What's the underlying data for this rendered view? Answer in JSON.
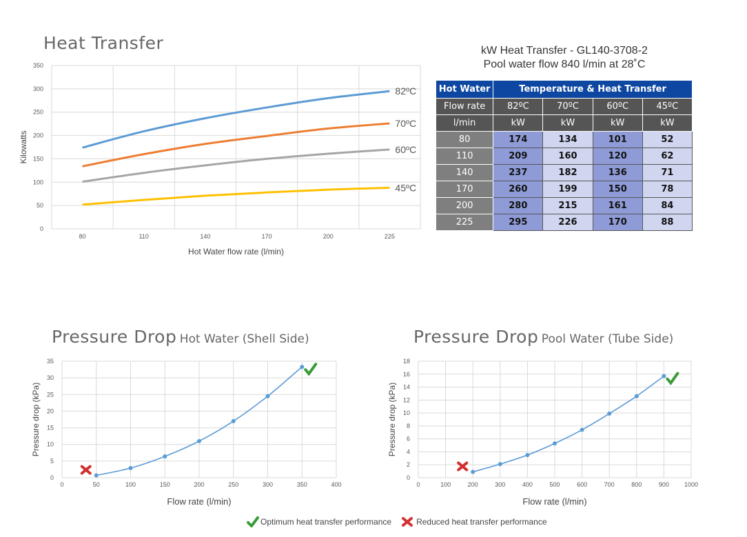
{
  "heat_transfer": {
    "title": "Heat Transfer",
    "chart_data": {
      "type": "line",
      "title": "Heat Transfer",
      "xlabel": "Hot Water flow rate (l/min)",
      "ylabel": "Kilowatts",
      "x": [
        80,
        110,
        140,
        170,
        200,
        225
      ],
      "xticks": [
        "80",
        "110",
        "140",
        "170",
        "200",
        "225"
      ],
      "ylim": [
        0,
        350
      ],
      "yticks": [
        0,
        50,
        100,
        150,
        200,
        250,
        300,
        350
      ],
      "grid": true,
      "series": [
        {
          "name": "82ºC",
          "color": "#5b9bd5",
          "values": [
            174,
            209,
            237,
            260,
            280,
            295
          ]
        },
        {
          "name": "70ºC",
          "color": "#ed7d31",
          "values": [
            134,
            160,
            182,
            199,
            215,
            226
          ]
        },
        {
          "name": "60ºC",
          "color": "#a5a5a5",
          "values": [
            101,
            120,
            136,
            150,
            161,
            170
          ]
        },
        {
          "name": "45ºC",
          "color": "#ffc000",
          "values": [
            52,
            62,
            71,
            78,
            84,
            88
          ]
        }
      ]
    }
  },
  "table": {
    "title_line1": "kW Heat Transfer - GL140-3708-2",
    "title_line2": "Pool water flow 840 l/min at 28˚C",
    "header_hot_water": "Hot Water",
    "header_temp": "Temperature & Heat Transfer",
    "header_flow_rate": "Flow rate",
    "header_lmin": "l/min",
    "temps": [
      "82ºC",
      "70ºC",
      "60ºC",
      "45ºC"
    ],
    "unit": "kW",
    "rows": [
      {
        "flow": "80",
        "vals": [
          "174",
          "134",
          "101",
          "52"
        ]
      },
      {
        "flow": "110",
        "vals": [
          "209",
          "160",
          "120",
          "62"
        ]
      },
      {
        "flow": "140",
        "vals": [
          "237",
          "182",
          "136",
          "71"
        ]
      },
      {
        "flow": "170",
        "vals": [
          "260",
          "199",
          "150",
          "78"
        ]
      },
      {
        "flow": "200",
        "vals": [
          "280",
          "215",
          "161",
          "84"
        ]
      },
      {
        "flow": "225",
        "vals": [
          "295",
          "226",
          "170",
          "88"
        ]
      }
    ]
  },
  "pd_hot": {
    "title_main": "Pressure Drop",
    "title_sub": "Hot Water (Shell Side)",
    "chart_data": {
      "type": "scatter",
      "xlabel": "Flow rate (l/min)",
      "ylabel": "Pressure drop (kPa)",
      "x": [
        50,
        100,
        150,
        200,
        250,
        300,
        350
      ],
      "y": [
        0.7,
        2.9,
        6.4,
        11,
        17,
        24.5,
        33.3
      ],
      "xlim": [
        0,
        400
      ],
      "xticks": [
        0,
        50,
        100,
        150,
        200,
        250,
        300,
        350,
        400
      ],
      "ylim": [
        0,
        35
      ],
      "yticks": [
        0,
        5,
        10,
        15,
        20,
        25,
        30,
        35
      ],
      "grid": true,
      "color": "#5b9bd5"
    }
  },
  "pd_pool": {
    "title_main": "Pressure Drop",
    "title_sub": "Pool Water (Tube Side)",
    "chart_data": {
      "type": "scatter",
      "xlabel": "Flow rate (l/min)",
      "ylabel": "Pressure drop (kPa)",
      "x": [
        200,
        300,
        400,
        500,
        600,
        700,
        800,
        900
      ],
      "y": [
        0.9,
        2.1,
        3.5,
        5.3,
        7.4,
        9.9,
        12.6,
        15.7
      ],
      "xlim": [
        0,
        1000
      ],
      "xticks": [
        0,
        100,
        200,
        300,
        400,
        500,
        600,
        700,
        800,
        900,
        1000
      ],
      "ylim": [
        0,
        18
      ],
      "yticks": [
        0,
        2,
        4,
        6,
        8,
        10,
        12,
        14,
        16,
        18
      ],
      "grid": true,
      "color": "#5b9bd5"
    }
  },
  "legend": {
    "optimum": "Optimum heat transfer performance",
    "reduced": "Reduced heat transfer performance",
    "check_color": "#3a9b3a",
    "cross_color": "#d32f2f"
  }
}
